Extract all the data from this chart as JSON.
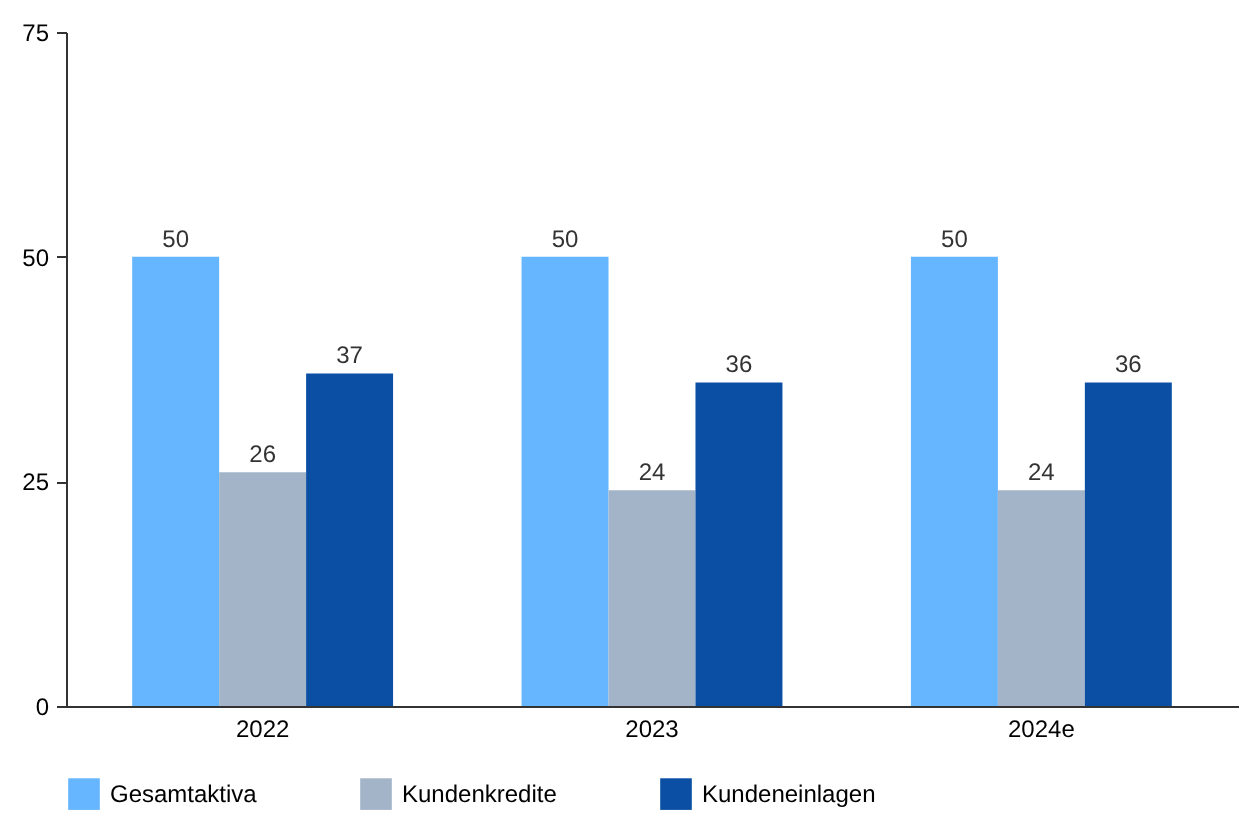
{
  "chart_data": {
    "type": "bar",
    "categories": [
      "2022",
      "2023",
      "2024e"
    ],
    "series": [
      {
        "name": "Gesamtaktiva",
        "color": "#66b5ff",
        "values": [
          50,
          50,
          50
        ]
      },
      {
        "name": "Kundenkredite",
        "color": "#a3b4c8",
        "values": [
          26,
          24,
          24
        ]
      },
      {
        "name": "Kundeneinlagen",
        "color": "#0a4fa3",
        "values": [
          37,
          36,
          36
        ]
      }
    ],
    "ylim": [
      0,
      75
    ],
    "yticks": [
      0,
      25,
      50,
      75
    ],
    "grid": false,
    "legend": "bottom",
    "data_labels": true
  }
}
